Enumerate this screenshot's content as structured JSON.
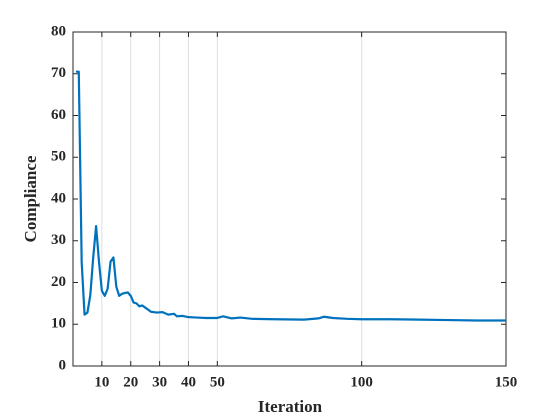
{
  "chart_data": {
    "type": "line",
    "x_label": "Iteration",
    "y_label": "Compliance",
    "x": [
      1,
      2,
      3,
      4,
      5,
      6,
      7,
      8,
      9,
      10,
      11,
      12,
      13,
      14,
      15,
      16,
      17,
      18,
      19,
      20,
      21,
      22,
      23,
      24,
      25,
      27,
      29,
      31,
      33,
      35,
      36,
      38,
      40,
      43,
      46,
      50,
      52,
      55,
      58,
      62,
      70,
      80,
      85,
      87,
      90,
      95,
      100,
      110,
      120,
      130,
      140,
      150
    ],
    "series": [
      {
        "name": "Compliance",
        "color": "#0072bd",
        "values": [
          70.5,
          70.5,
          25,
          12.3,
          12.8,
          17,
          26,
          33.5,
          25,
          18,
          16.8,
          18.5,
          25,
          26,
          19,
          16.8,
          17.3,
          17.5,
          17.6,
          16.8,
          15.2,
          15.0,
          14.3,
          14.5,
          14.0,
          13.0,
          12.8,
          12.9,
          12.3,
          12.5,
          11.9,
          12.0,
          11.7,
          11.6,
          11.5,
          11.5,
          11.9,
          11.4,
          11.6,
          11.3,
          11.2,
          11.1,
          11.4,
          11.8,
          11.5,
          11.3,
          11.2,
          11.2,
          11.1,
          11.0,
          10.9,
          10.9
        ]
      }
    ],
    "xlim": [
      0,
      150
    ],
    "xticks": [
      10,
      20,
      30,
      40,
      50,
      100,
      150
    ],
    "ylim": [
      0,
      80
    ],
    "yticks": [
      0,
      10,
      20,
      30,
      40,
      50,
      60,
      70,
      80
    ],
    "grid": "x"
  }
}
